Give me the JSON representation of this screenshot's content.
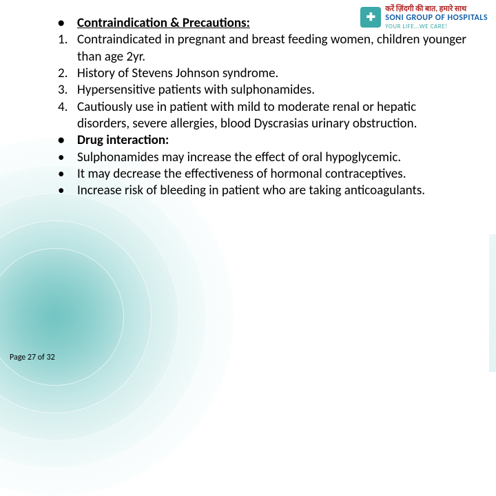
{
  "logo": {
    "hindi": "करें ज़िंदगी की बात, हमारे साथ",
    "brand": "SONI GROUP OF HOSPITALS",
    "tagline": "YOUR LIFE...WE CARE!"
  },
  "content": {
    "h1_marker": "•",
    "h1_text": "Contraindication & Precautions:",
    "i1_marker": "1.",
    "i1_text": "Contraindicated in pregnant and breast feeding women, children younger than age 2yr.",
    "i2_marker": "2.",
    "i2_text": "History of Stevens Johnson syndrome.",
    "i3_marker": "3.",
    "i3_text": "Hypersensitive patients with sulphonamides.",
    "i4_marker": "4.",
    "i4_text": "Cautiously use in patient with mild to moderate renal or hepatic disorders, severe allergies, blood Dyscrasias urinary obstruction.",
    "h2_marker": "•",
    "h2_text": "Drug interaction:",
    "b1_marker": "•",
    "b1_text": "Sulphonamides may increase the effect of oral hypoglycemic.",
    "b2_marker": "•",
    "b2_text": "It may decrease the effectiveness of hormonal contraceptives.",
    "b3_marker": "•",
    "b3_text": "Increase risk of bleeding in patient who are taking anticoagulants."
  },
  "pager": {
    "text": "Page 27 of 32"
  },
  "colors": {
    "accent": "#3aa9a7",
    "brand_blue": "#1560a8",
    "brand_red": "#b02828"
  }
}
